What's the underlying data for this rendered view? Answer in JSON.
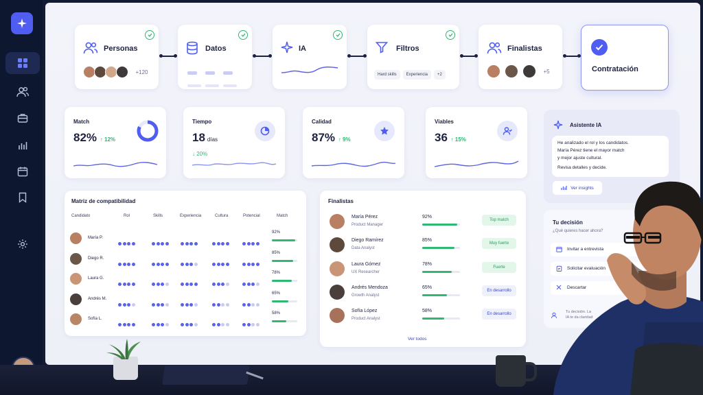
{
  "pipeline": {
    "steps": [
      {
        "label": "Personas",
        "more": "+120",
        "checked": true,
        "icon": "users-icon"
      },
      {
        "label": "Datos",
        "checked": true,
        "icon": "database-icon"
      },
      {
        "label": "IA",
        "checked": true,
        "icon": "sparkle-icon"
      },
      {
        "label": "Filtros",
        "chips": [
          "Hard skills",
          "Experiencia",
          "+2"
        ],
        "checked": true,
        "icon": "filter-icon"
      },
      {
        "label": "Finalistas",
        "more": "+5",
        "checked": false,
        "icon": "users-icon"
      },
      {
        "label": "Contratación",
        "checked": true,
        "icon": "check-circle-icon"
      }
    ]
  },
  "kpis": [
    {
      "label": "Match",
      "value": "82%",
      "delta": "↑ 12%",
      "ring": 0.82
    },
    {
      "label": "Tiempo",
      "value": "18",
      "unit": "días",
      "delta": "↓ 20%",
      "icon": "clock-icon"
    },
    {
      "label": "Calidad",
      "value": "87%",
      "delta": "↑ 9%",
      "icon": "star-icon"
    },
    {
      "label": "Viables",
      "value": "36",
      "delta": "↑ 15%",
      "icon": "user-check-icon"
    }
  ],
  "matrix": {
    "title": "Matriz de compatibilidad",
    "columns": [
      "Candidato",
      "Rol",
      "Skills",
      "Experiencia",
      "Cultura",
      "Potencial",
      "Match"
    ],
    "rows": [
      {
        "name": "María P.",
        "scores": [
          4,
          4,
          4,
          4,
          4
        ],
        "match": "92%",
        "match_value": 0.92
      },
      {
        "name": "Diego R.",
        "scores": [
          4,
          4,
          3,
          4,
          4
        ],
        "match": "85%",
        "match_value": 0.85
      },
      {
        "name": "Laura G.",
        "scores": [
          4,
          3,
          4,
          3,
          3
        ],
        "match": "78%",
        "match_value": 0.78
      },
      {
        "name": "Andrés M.",
        "scores": [
          3,
          3,
          3,
          2,
          2
        ],
        "match": "65%",
        "match_value": 0.65
      },
      {
        "name": "Sofía L.",
        "scores": [
          4,
          3,
          3,
          2,
          2
        ],
        "match": "58%",
        "match_value": 0.58
      }
    ]
  },
  "finalists": {
    "title": "Finalistas",
    "rows": [
      {
        "name": "María Pérez",
        "role": "Product Manager",
        "pct": "92%",
        "value": 0.92,
        "tag": "Top match",
        "tag_style": "green"
      },
      {
        "name": "Diego Ramírez",
        "role": "Data Analyst",
        "pct": "85%",
        "value": 0.85,
        "tag": "Muy fuerte",
        "tag_style": "green"
      },
      {
        "name": "Laura Gómez",
        "role": "UX Researcher",
        "pct": "78%",
        "value": 0.78,
        "tag": "Fuerte",
        "tag_style": "green"
      },
      {
        "name": "Andrés Mendoza",
        "role": "Growth Analyst",
        "pct": "65%",
        "value": 0.65,
        "tag": "En desarrollo",
        "tag_style": "blue"
      },
      {
        "name": "Sofía López",
        "role": "Product Analyst",
        "pct": "58%",
        "value": 0.58,
        "tag": "En desarrollo",
        "tag_style": "blue"
      }
    ],
    "view_all": "Ver todos"
  },
  "assistant": {
    "title": "Asistente IA",
    "lines": [
      "He analizado el rol y los candidatos.",
      "María Pérez tiene el mayor match",
      "y mejor ajuste cultural.",
      "Revisa detalles y decide."
    ],
    "button": "Ver insights"
  },
  "decision": {
    "title": "Tu decisión",
    "question": "¿Qué quieres hacer ahora?",
    "options": [
      "Invitar a entrevista",
      "Solicitar evaluación",
      "Descartar"
    ],
    "footer_1": "Tu decisión. La",
    "footer_2": "IA te da claridad"
  },
  "colors": {
    "accent": "#4f5df0",
    "success": "#2eb872",
    "sidebar": "#0e1730"
  }
}
